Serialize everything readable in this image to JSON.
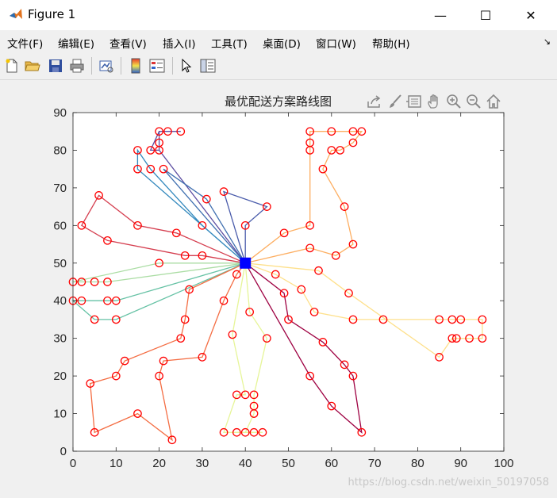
{
  "window": {
    "title": "Figure 1",
    "minimize_glyph": "—",
    "maximize_glyph": "☐",
    "close_glyph": "✕"
  },
  "menu": {
    "items": [
      "文件(F)",
      "编辑(E)",
      "查看(V)",
      "插入(I)",
      "工具(T)",
      "桌面(D)",
      "窗口(W)",
      "帮助(H)"
    ],
    "corner_glyph": "↘"
  },
  "toolbar": {
    "icons": [
      "new-file-icon",
      "open-folder-icon",
      "save-icon",
      "print-icon",
      "link-plot-icon",
      "insert-colorbar-icon",
      "insert-legend-icon",
      "select-pointer-icon",
      "property-inspector-icon"
    ]
  },
  "axes_toolbar": {
    "icons": [
      "export-icon",
      "brush-icon",
      "data-tips-icon",
      "pan-hand-icon",
      "zoom-in-icon",
      "zoom-out-icon",
      "home-icon"
    ]
  },
  "watermark": "https://blog.csdn.net/weixin_50197058",
  "chart_data": {
    "type": "line",
    "title": "最优配送方案路线图",
    "xlim": [
      0,
      100
    ],
    "ylim": [
      0,
      90
    ],
    "xticks": [
      0,
      10,
      20,
      30,
      40,
      50,
      60,
      70,
      80,
      90,
      100
    ],
    "yticks": [
      0,
      10,
      20,
      30,
      40,
      50,
      60,
      70,
      80,
      90
    ],
    "grid": false,
    "depot": {
      "x": 40,
      "y": 50,
      "color": "#0000ff"
    },
    "customer_marker_color": "#ff0000",
    "routes": [
      {
        "color": "#5e4fa2",
        "points": [
          [
            40,
            50
          ],
          [
            20,
            80
          ],
          [
            20,
            82
          ],
          [
            20,
            85
          ],
          [
            22,
            85
          ],
          [
            25,
            85
          ],
          [
            22,
            85
          ],
          [
            20,
            85
          ],
          [
            18,
            80
          ],
          [
            20,
            80
          ],
          [
            40,
            50
          ]
        ]
      },
      {
        "color": "#3288bd",
        "points": [
          [
            40,
            50
          ],
          [
            15,
            75
          ],
          [
            15,
            80
          ],
          [
            18,
            75
          ],
          [
            30,
            60
          ],
          [
            40,
            50
          ]
        ]
      },
      {
        "color": "#3f6fb0",
        "points": [
          [
            40,
            50
          ],
          [
            21,
            75
          ],
          [
            31,
            67
          ],
          [
            40,
            50
          ]
        ]
      },
      {
        "color": "#4a5cab",
        "points": [
          [
            40,
            50
          ],
          [
            35,
            69
          ],
          [
            45,
            65
          ],
          [
            40,
            60
          ],
          [
            40,
            50
          ]
        ]
      },
      {
        "color": "#d53e4f",
        "points": [
          [
            40,
            50
          ],
          [
            30,
            52
          ],
          [
            26,
            52
          ],
          [
            8,
            56
          ],
          [
            2,
            60
          ],
          [
            6,
            68
          ],
          [
            15,
            60
          ],
          [
            24,
            58
          ],
          [
            40,
            50
          ]
        ]
      },
      {
        "color": "#abdda4",
        "points": [
          [
            40,
            50
          ],
          [
            20,
            50
          ],
          [
            0,
            45
          ],
          [
            2,
            45
          ],
          [
            5,
            45
          ],
          [
            8,
            45
          ],
          [
            40,
            50
          ]
        ]
      },
      {
        "color": "#66c2a5",
        "points": [
          [
            40,
            50
          ],
          [
            10,
            40
          ],
          [
            8,
            40
          ],
          [
            2,
            40
          ],
          [
            0,
            40
          ],
          [
            5,
            35
          ],
          [
            10,
            35
          ],
          [
            40,
            50
          ]
        ]
      },
      {
        "color": "#f46d43",
        "points": [
          [
            40,
            50
          ],
          [
            27,
            43
          ],
          [
            26,
            35
          ],
          [
            25,
            30
          ],
          [
            12,
            24
          ],
          [
            10,
            20
          ],
          [
            4,
            18
          ],
          [
            5,
            5
          ],
          [
            15,
            10
          ],
          [
            23,
            3
          ],
          [
            20,
            20
          ],
          [
            21,
            24
          ],
          [
            30,
            25
          ],
          [
            35,
            40
          ],
          [
            38,
            47
          ],
          [
            40,
            50
          ]
        ]
      },
      {
        "color": "#e6f598",
        "points": [
          [
            40,
            50
          ],
          [
            41,
            37
          ],
          [
            45,
            30
          ],
          [
            42,
            15
          ],
          [
            42,
            12
          ],
          [
            42,
            10
          ],
          [
            40,
            5
          ],
          [
            42,
            5
          ],
          [
            44,
            5
          ],
          [
            38,
            5
          ],
          [
            35,
            5
          ],
          [
            38,
            15
          ],
          [
            40,
            15
          ],
          [
            37,
            31
          ],
          [
            40,
            50
          ]
        ]
      },
      {
        "color": "#9e0142",
        "points": [
          [
            40,
            50
          ],
          [
            55,
            20
          ],
          [
            60,
            12
          ],
          [
            67,
            5
          ],
          [
            65,
            20
          ],
          [
            63,
            23
          ],
          [
            58,
            29
          ],
          [
            50,
            35
          ],
          [
            49,
            42
          ],
          [
            40,
            50
          ]
        ]
      },
      {
        "color": "#fdae61",
        "points": [
          [
            40,
            50
          ],
          [
            49,
            58
          ],
          [
            55,
            60
          ],
          [
            55,
            80
          ],
          [
            55,
            82
          ],
          [
            55,
            85
          ],
          [
            60,
            85
          ],
          [
            65,
            85
          ],
          [
            67,
            85
          ],
          [
            65,
            82
          ],
          [
            62,
            80
          ],
          [
            60,
            80
          ],
          [
            58,
            75
          ],
          [
            63,
            65
          ],
          [
            65,
            55
          ],
          [
            61,
            52
          ],
          [
            55,
            54
          ],
          [
            40,
            50
          ]
        ]
      },
      {
        "color": "#fee08b",
        "points": [
          [
            40,
            50
          ],
          [
            47,
            47
          ],
          [
            53,
            43
          ],
          [
            56,
            37
          ],
          [
            65,
            35
          ],
          [
            72,
            35
          ],
          [
            85,
            35
          ],
          [
            88,
            35
          ],
          [
            90,
            35
          ],
          [
            95,
            35
          ],
          [
            95,
            30
          ],
          [
            92,
            30
          ],
          [
            89,
            30
          ],
          [
            88,
            30
          ],
          [
            85,
            25
          ],
          [
            64,
            42
          ],
          [
            57,
            48
          ],
          [
            40,
            50
          ]
        ]
      }
    ]
  }
}
